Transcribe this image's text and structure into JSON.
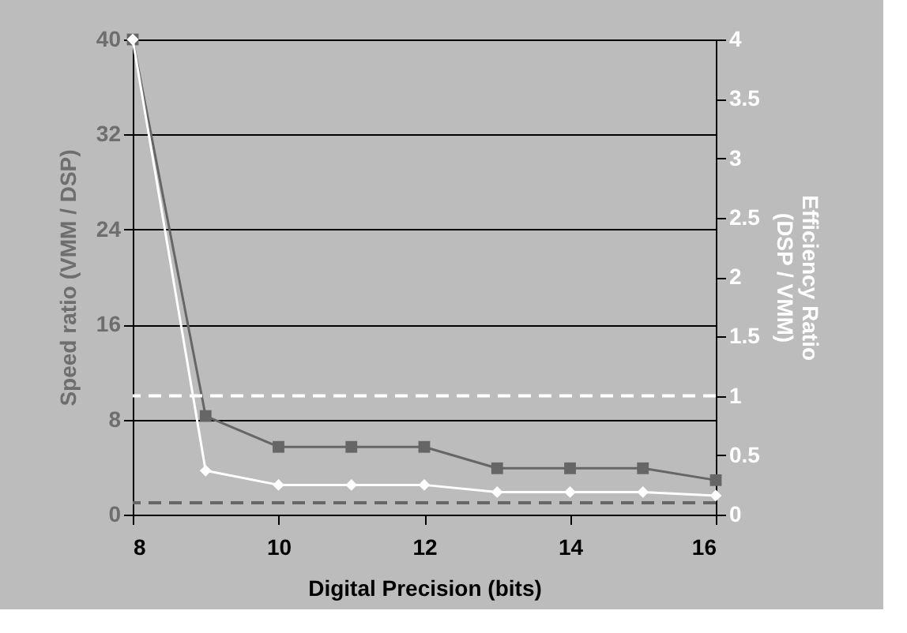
{
  "chart_data": {
    "type": "line",
    "xlabel": "Digital Precision (bits)",
    "ylabel": "Speed ratio (VMM / DSP)",
    "y2label": "Efficiency Ratio (DSP / VMM)",
    "x": [
      8,
      9,
      10,
      11,
      12,
      13,
      14,
      15,
      16
    ],
    "series": [
      {
        "color": "#666666",
        "marker": "square",
        "values": [
          40,
          8.3,
          5.7,
          5.7,
          5.7,
          3.9,
          3.9,
          3.9,
          2.9
        ]
      },
      {
        "color": "#ffffff",
        "marker": "diamond",
        "axis": "y2",
        "values": [
          4,
          0.37,
          0.25,
          0.25,
          0.25,
          0.19,
          0.19,
          0.19,
          0.16
        ]
      }
    ],
    "xlim": [
      8,
      16
    ],
    "xticks": [
      8,
      10,
      12,
      14,
      16
    ],
    "ylim": [
      0,
      40
    ],
    "yticks": [
      0,
      8,
      16,
      24,
      32,
      40
    ],
    "y2lim": [
      0,
      4
    ],
    "y2ticks": [
      0,
      0.5,
      1,
      1.5,
      2,
      2.5,
      3,
      3.5,
      4
    ],
    "ref_lines": [
      {
        "axis": "y",
        "value": 1,
        "color": "#666666",
        "line_style": "dashed"
      },
      {
        "axis": "y2",
        "value": 1,
        "color": "#ffffff",
        "line_style": "dashed"
      }
    ],
    "grid": "y"
  }
}
